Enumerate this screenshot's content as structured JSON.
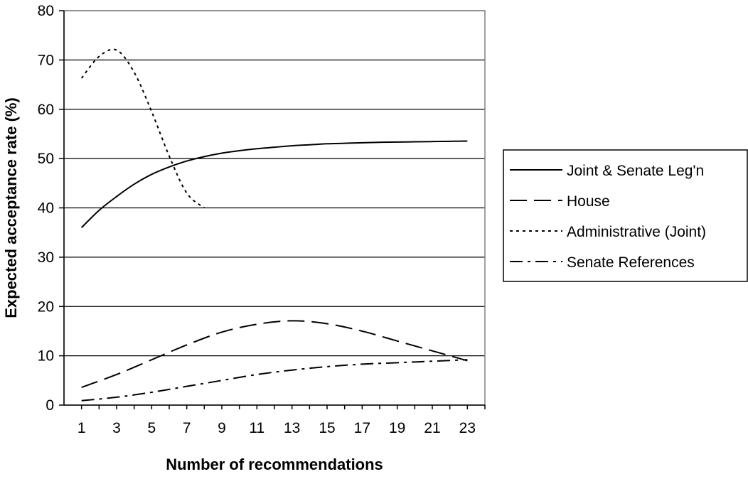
{
  "chart_data": {
    "type": "line",
    "title": "",
    "xlabel": "Number of recommendations",
    "ylabel": "Expected acceptance rate (%)",
    "xlim": [
      0,
      24
    ],
    "ylim": [
      0,
      80
    ],
    "x_ticks": [
      1,
      3,
      5,
      7,
      9,
      11,
      13,
      15,
      17,
      19,
      21,
      23
    ],
    "y_ticks": [
      0,
      10,
      20,
      30,
      40,
      50,
      60,
      70,
      80
    ],
    "grid": "horizontal",
    "legend_position": "right",
    "series": [
      {
        "name": "Joint & Senate Leg'n",
        "dash": "solid",
        "color": "#000000",
        "points": [
          [
            1,
            36
          ],
          [
            2,
            39.5
          ],
          [
            3,
            42.3
          ],
          [
            4,
            44.8
          ],
          [
            5,
            46.8
          ],
          [
            6,
            48.3
          ],
          [
            7,
            49.5
          ],
          [
            8,
            50.4
          ],
          [
            9,
            51.1
          ],
          [
            10,
            51.6
          ],
          [
            11,
            52
          ],
          [
            12,
            52.3
          ],
          [
            13,
            52.6
          ],
          [
            14,
            52.8
          ],
          [
            15,
            53
          ],
          [
            16,
            53.1
          ],
          [
            17,
            53.2
          ],
          [
            18,
            53.3
          ],
          [
            19,
            53.35
          ],
          [
            20,
            53.4
          ],
          [
            21,
            53.45
          ],
          [
            22,
            53.5
          ],
          [
            23,
            53.55
          ]
        ]
      },
      {
        "name": "House",
        "dash": "long-dash",
        "color": "#000000",
        "points": [
          [
            1,
            3.6
          ],
          [
            3,
            6.2
          ],
          [
            5,
            9.2
          ],
          [
            7,
            12.2
          ],
          [
            9,
            14.8
          ],
          [
            11,
            16.4
          ],
          [
            13,
            17.1
          ],
          [
            15,
            16.5
          ],
          [
            17,
            15
          ],
          [
            19,
            13
          ],
          [
            21,
            11
          ],
          [
            23,
            9
          ]
        ]
      },
      {
        "name": "Administrative (Joint)",
        "dash": "dotted",
        "color": "#000000",
        "points": [
          [
            1,
            66.3
          ],
          [
            2,
            70.7
          ],
          [
            3,
            72
          ],
          [
            4,
            67.5
          ],
          [
            5,
            59.5
          ],
          [
            6,
            50.5
          ],
          [
            7,
            43
          ],
          [
            8,
            40
          ]
        ]
      },
      {
        "name": "Senate References",
        "dash": "dash-dot",
        "color": "#000000",
        "points": [
          [
            1,
            0.9
          ],
          [
            3,
            1.6
          ],
          [
            5,
            2.6
          ],
          [
            7,
            3.8
          ],
          [
            9,
            5
          ],
          [
            11,
            6.2
          ],
          [
            13,
            7.1
          ],
          [
            15,
            7.8
          ],
          [
            17,
            8.3
          ],
          [
            19,
            8.6
          ],
          [
            21,
            8.9
          ],
          [
            23,
            9.2
          ]
        ]
      }
    ]
  }
}
